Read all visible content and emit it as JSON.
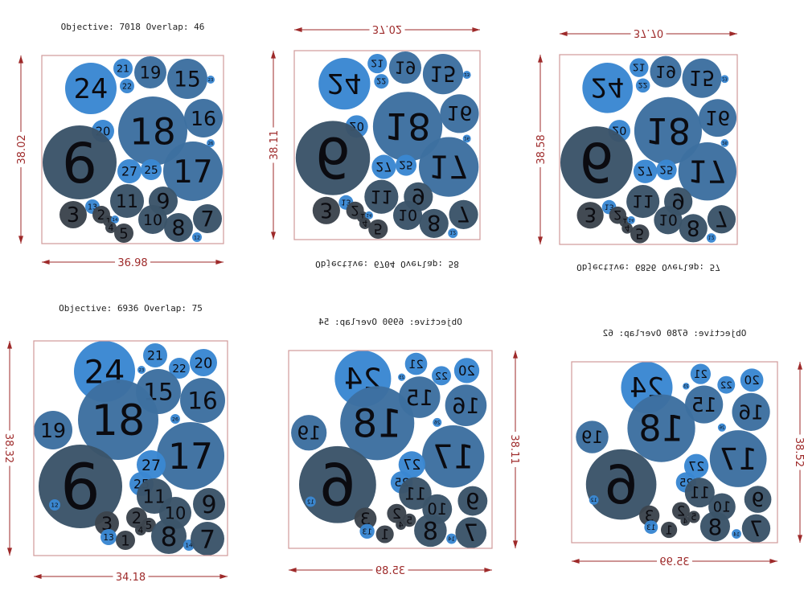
{
  "labels": {
    "objective": "Objective:",
    "overlap": "Overlap:"
  },
  "colors": {
    "bright_blue": "#3a87d2",
    "mid_blue": "#3d6fa0",
    "dark_slate": "#3b5469",
    "darkest": "#3c444d",
    "box": "#d09a9a",
    "dimension": "#9e2a2a"
  },
  "panels": [
    {
      "objective": "7018",
      "overlap": "46",
      "width": "36.98",
      "height": "38.02",
      "circles": [
        "24",
        "21",
        "22",
        "19",
        "15",
        "23",
        "18",
        "16",
        "20",
        "26",
        "6",
        "17",
        "27",
        "25",
        "11",
        "9",
        "3",
        "13",
        "2",
        "1",
        "14",
        "4",
        "5",
        "10",
        "8",
        "12",
        "7"
      ]
    },
    {
      "objective": "6704",
      "overlap": "58",
      "width": "37.02",
      "height": "38.11",
      "circles": [
        "24",
        "21",
        "22",
        "19",
        "15",
        "23",
        "18",
        "16",
        "20",
        "26",
        "6",
        "17",
        "27",
        "25",
        "11",
        "9",
        "3",
        "13",
        "2",
        "1",
        "14",
        "4",
        "5",
        "10",
        "8",
        "12",
        "7"
      ]
    },
    {
      "objective": "6856",
      "overlap": "57",
      "width": "37.70",
      "height": "38.58",
      "circles": [
        "24",
        "21",
        "22",
        "19",
        "15",
        "23",
        "18",
        "16",
        "20",
        "26",
        "6",
        "17",
        "27",
        "25",
        "11",
        "9",
        "3",
        "13",
        "2",
        "1",
        "14",
        "4",
        "5",
        "10",
        "8",
        "12",
        "7"
      ]
    },
    {
      "objective": "6936",
      "overlap": "75",
      "width": "34.18",
      "height": "38.32",
      "circles": [
        "24",
        "21",
        "23",
        "22",
        "20",
        "15",
        "18",
        "16",
        "19",
        "26",
        "17",
        "6",
        "12",
        "27",
        "25",
        "11",
        "10",
        "9",
        "3",
        "13",
        "2",
        "4",
        "5",
        "1",
        "8",
        "14",
        "7"
      ]
    },
    {
      "objective": "6990",
      "overlap": "54",
      "width": "35.89",
      "height": "38.11",
      "circles": [
        "24",
        "21",
        "23",
        "22",
        "20",
        "15",
        "18",
        "16",
        "19",
        "26",
        "17",
        "6",
        "12",
        "27",
        "25",
        "11",
        "10",
        "9",
        "3",
        "13",
        "2",
        "4",
        "5",
        "1",
        "8",
        "14",
        "7"
      ]
    },
    {
      "objective": "6780",
      "overlap": "62",
      "width": "35.99",
      "height": "38.52",
      "circles": [
        "24",
        "21",
        "23",
        "22",
        "20",
        "15",
        "18",
        "16",
        "19",
        "26",
        "17",
        "6",
        "12",
        "27",
        "25",
        "11",
        "10",
        "9",
        "3",
        "13",
        "2",
        "4",
        "5",
        "1",
        "8",
        "14",
        "7"
      ]
    }
  ]
}
